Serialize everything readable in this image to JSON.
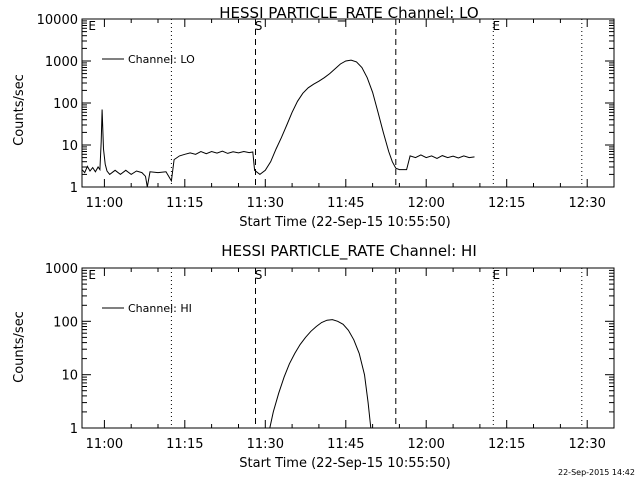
{
  "chart_data": [
    {
      "type": "line",
      "title": "HESSI PARTICLE_RATE Channel: LO",
      "xlabel": "Start Time (22-Sep-15 10:55:50)",
      "ylabel": "Counts/sec",
      "yscale": "log",
      "ylim": [
        1,
        10000
      ],
      "xlim": [
        "10:55:50",
        "12:35:00"
      ],
      "x_ticks": [
        "11:00",
        "11:15",
        "11:30",
        "11:45",
        "12:00",
        "12:15",
        "12:30"
      ],
      "y_ticks": [
        "1",
        "10",
        "100",
        "1000",
        "10000"
      ],
      "legend": {
        "position": "top-left",
        "entries": [
          "Channel: LO"
        ]
      },
      "markers": [
        {
          "label": "E",
          "time": "10:57:10",
          "style": "dotted"
        },
        {
          "label": "S",
          "time": "11:28:10",
          "style": "dashed"
        },
        {
          "label": "E",
          "time": "12:12:30",
          "style": "dotted"
        }
      ],
      "vlines": [
        {
          "time": "11:12:30",
          "style": "dotted"
        },
        {
          "time": "11:28:10",
          "style": "dashed"
        },
        {
          "time": "11:54:20",
          "style": "dashed"
        },
        {
          "time": "12:12:30",
          "style": "dotted"
        },
        {
          "time": "12:29:00",
          "style": "dotted"
        }
      ],
      "series": [
        {
          "name": "Channel: LO",
          "points": [
            [
              "10:55:50",
              2.6
            ],
            [
              "10:56:20",
              2.2
            ],
            [
              "10:56:50",
              3.1
            ],
            [
              "10:57:20",
              2.4
            ],
            [
              "10:57:50",
              2.9
            ],
            [
              "10:58:20",
              2.3
            ],
            [
              "10:58:50",
              3.0
            ],
            [
              "10:59:10",
              2.6
            ],
            [
              "10:59:25",
              12
            ],
            [
              "10:59:35",
              70
            ],
            [
              "10:59:50",
              8
            ],
            [
              "11:00:10",
              3.5
            ],
            [
              "11:00:30",
              2.4
            ],
            [
              "11:01:00",
              2.0
            ],
            [
              "11:02:00",
              2.5
            ],
            [
              "11:03:00",
              2.0
            ],
            [
              "11:04:00",
              2.5
            ],
            [
              "11:05:00",
              2.0
            ],
            [
              "11:06:00",
              2.4
            ],
            [
              "11:07:00",
              2.2
            ],
            [
              "11:07:40",
              1.8
            ],
            [
              "11:08:00",
              1.0
            ],
            [
              "11:08:30",
              2.3
            ],
            [
              "11:10:00",
              2.2
            ],
            [
              "11:11:30",
              2.3
            ],
            [
              "11:12:30",
              1.4
            ],
            [
              "11:13:00",
              4.5
            ],
            [
              "11:14:00",
              5.5
            ],
            [
              "11:15:00",
              6.0
            ],
            [
              "11:16:00",
              6.5
            ],
            [
              "11:17:00",
              6.0
            ],
            [
              "11:18:00",
              7.0
            ],
            [
              "11:19:00",
              6.2
            ],
            [
              "11:20:00",
              7.0
            ],
            [
              "11:21:00",
              6.4
            ],
            [
              "11:22:00",
              7.1
            ],
            [
              "11:23:00",
              6.3
            ],
            [
              "11:24:00",
              6.9
            ],
            [
              "11:25:00",
              6.5
            ],
            [
              "11:26:00",
              7.0
            ],
            [
              "11:27:00",
              6.6
            ],
            [
              "11:27:40",
              6.8
            ],
            [
              "11:28:00",
              2.5
            ],
            [
              "11:29:00",
              2.0
            ],
            [
              "11:30:00",
              2.5
            ],
            [
              "11:31:00",
              4.0
            ],
            [
              "11:32:00",
              8
            ],
            [
              "11:33:00",
              15
            ],
            [
              "11:34:00",
              30
            ],
            [
              "11:35:00",
              60
            ],
            [
              "11:36:00",
              110
            ],
            [
              "11:37:00",
              170
            ],
            [
              "11:38:00",
              230
            ],
            [
              "11:39:00",
              280
            ],
            [
              "11:40:00",
              330
            ],
            [
              "11:41:00",
              400
            ],
            [
              "11:42:00",
              500
            ],
            [
              "11:43:00",
              650
            ],
            [
              "11:44:00",
              850
            ],
            [
              "11:45:00",
              1000
            ],
            [
              "11:46:00",
              1050
            ],
            [
              "11:47:00",
              950
            ],
            [
              "11:48:00",
              700
            ],
            [
              "11:49:00",
              400
            ],
            [
              "11:50:00",
              180
            ],
            [
              "11:51:00",
              60
            ],
            [
              "11:52:00",
              20
            ],
            [
              "11:53:00",
              7
            ],
            [
              "11:53:40",
              4
            ],
            [
              "11:54:20",
              2.8
            ],
            [
              "11:55:00",
              2.6
            ],
            [
              "11:56:20",
              2.6
            ],
            [
              "11:57:00",
              5.5
            ],
            [
              "11:58:00",
              5.0
            ],
            [
              "11:59:00",
              5.8
            ],
            [
              "12:00:00",
              5.0
            ],
            [
              "12:01:00",
              5.5
            ],
            [
              "12:02:00",
              4.8
            ],
            [
              "12:03:00",
              5.6
            ],
            [
              "12:04:00",
              5.0
            ],
            [
              "12:05:00",
              5.4
            ],
            [
              "12:06:00",
              4.9
            ],
            [
              "12:07:00",
              5.5
            ],
            [
              "12:08:00",
              5.0
            ],
            [
              "12:09:00",
              5.2
            ]
          ]
        }
      ]
    },
    {
      "type": "line",
      "title": "HESSI PARTICLE_RATE Channel: HI",
      "xlabel": "Start Time (22-Sep-15 10:55:50)",
      "ylabel": "Counts/sec",
      "yscale": "log",
      "ylim": [
        1,
        1000
      ],
      "xlim": [
        "10:55:50",
        "12:35:00"
      ],
      "x_ticks": [
        "11:00",
        "11:15",
        "11:30",
        "11:45",
        "12:00",
        "12:15",
        "12:30"
      ],
      "y_ticks": [
        "1",
        "10",
        "100",
        "1000"
      ],
      "legend": {
        "position": "top-left",
        "entries": [
          "Channel: HI"
        ]
      },
      "markers": [
        {
          "label": "E",
          "time": "10:57:10",
          "style": "dotted"
        },
        {
          "label": "S",
          "time": "11:28:10",
          "style": "dashed"
        },
        {
          "label": "E",
          "time": "12:12:30",
          "style": "dotted"
        }
      ],
      "vlines": [
        {
          "time": "11:12:30",
          "style": "dotted"
        },
        {
          "time": "11:28:10",
          "style": "dashed"
        },
        {
          "time": "11:54:20",
          "style": "dashed"
        },
        {
          "time": "12:12:30",
          "style": "dotted"
        },
        {
          "time": "12:29:00",
          "style": "dotted"
        }
      ],
      "series": [
        {
          "name": "Channel: HI",
          "points": [
            [
              "11:30:50",
              1.0
            ],
            [
              "11:31:30",
              2.0
            ],
            [
              "11:32:30",
              4.5
            ],
            [
              "11:33:30",
              9
            ],
            [
              "11:34:30",
              16
            ],
            [
              "11:35:30",
              25
            ],
            [
              "11:36:30",
              37
            ],
            [
              "11:37:30",
              50
            ],
            [
              "11:38:30",
              65
            ],
            [
              "11:39:30",
              80
            ],
            [
              "11:40:30",
              95
            ],
            [
              "11:41:30",
              105
            ],
            [
              "11:42:30",
              108
            ],
            [
              "11:43:30",
              100
            ],
            [
              "11:44:30",
              88
            ],
            [
              "11:45:30",
              68
            ],
            [
              "11:46:30",
              45
            ],
            [
              "11:47:30",
              25
            ],
            [
              "11:48:30",
              10
            ],
            [
              "11:49:10",
              3
            ],
            [
              "11:49:40",
              1.0
            ]
          ]
        }
      ]
    }
  ],
  "footer": {
    "timestamp": "22-Sep-2015 14:42"
  }
}
